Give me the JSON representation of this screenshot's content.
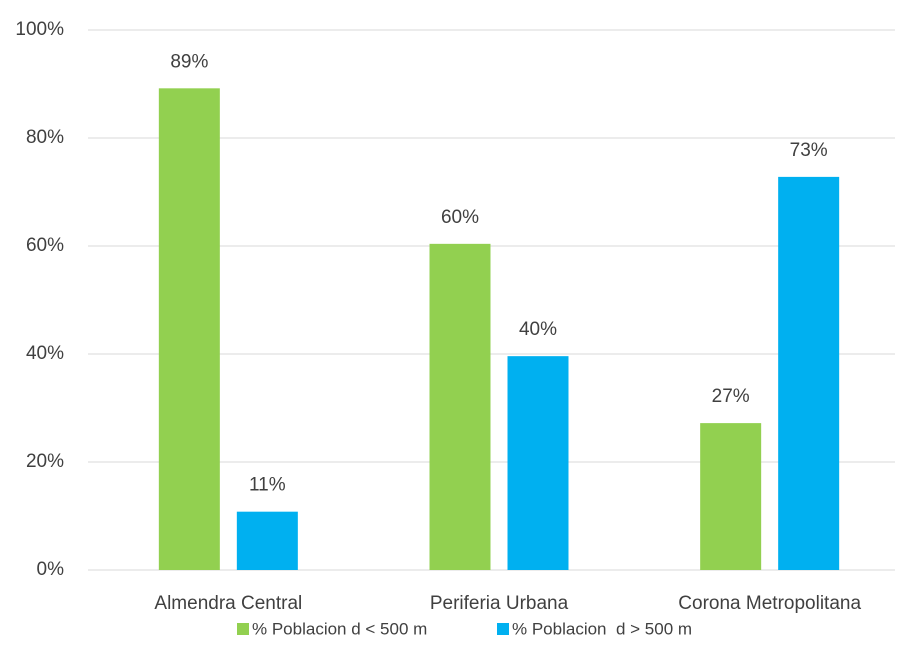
{
  "chart_data": {
    "type": "bar",
    "categories": [
      "Almendra Central",
      "Periferia Urbana",
      "Corona Metropolitana"
    ],
    "series": [
      {
        "name": "% Poblacion d < 500 m",
        "color": "#92d050",
        "values": [
          89.2,
          60.4,
          27.2
        ],
        "value_labels": [
          "89%",
          "60%",
          "27%"
        ]
      },
      {
        "name": "% Poblacion  d > 500 m",
        "color": "#00b0f0",
        "values": [
          10.8,
          39.6,
          72.8
        ],
        "value_labels": [
          "11%",
          "40%",
          "73%"
        ]
      }
    ],
    "ylim": [
      0,
      100
    ],
    "yticks": [
      {
        "value": 0,
        "label": "0%"
      },
      {
        "value": 20,
        "label": "20%"
      },
      {
        "value": 40,
        "label": "40%"
      },
      {
        "value": 60,
        "label": "60%"
      },
      {
        "value": 80,
        "label": "80%"
      },
      {
        "value": 100,
        "label": "100%"
      }
    ],
    "grid": true,
    "legend": "bottom"
  }
}
